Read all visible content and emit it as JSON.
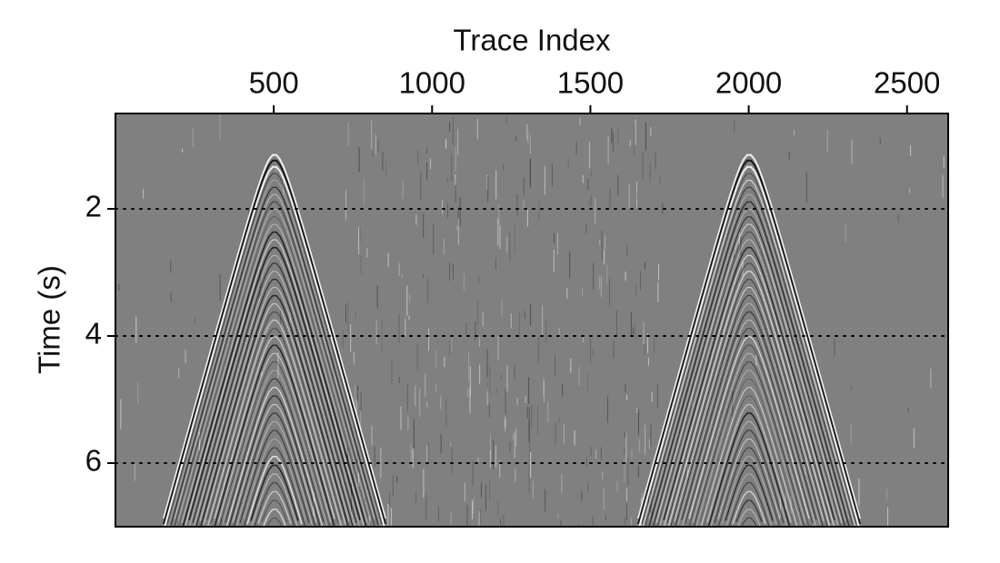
{
  "chart_data": {
    "type": "image",
    "x_label": "Trace Index",
    "y_label": "Time (s)",
    "xlim": [
      0,
      2630
    ],
    "xticks": [
      500,
      1000,
      1500,
      2000,
      2500
    ],
    "ylim": [
      0.5,
      7
    ],
    "y_inverted": true,
    "yticks": [
      2,
      4,
      6
    ],
    "grid": "y",
    "grid_style": "dotted",
    "background": "#808080"
  }
}
